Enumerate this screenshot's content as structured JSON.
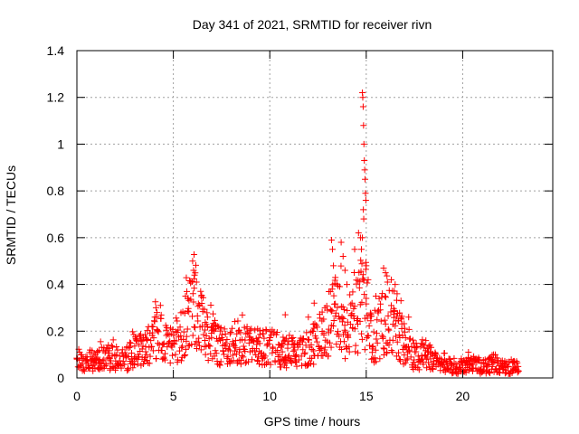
{
  "chart_data": {
    "type": "scatter",
    "title": "Day 341 of 2021, SRMTID for receiver rivn",
    "xlabel": "GPS time / hours",
    "ylabel": "SRMTID / TECUs",
    "xlim": [
      0,
      24.67
    ],
    "ylim": [
      0,
      1.4
    ],
    "xticks": [
      0,
      5,
      10,
      15,
      20
    ],
    "yticks": [
      0,
      0.2,
      0.4,
      0.6,
      0.8,
      1,
      1.2,
      1.4
    ],
    "x_tick_labels": [
      "0",
      "5",
      "10",
      "15",
      "20"
    ],
    "y_tick_labels": [
      "0",
      "0.2",
      "0.4",
      "0.6",
      "0.8",
      "1",
      "1.2",
      "1.4"
    ],
    "grid": true,
    "marker": "+",
    "series": [
      {
        "name": "SRMTID",
        "color": "#ff0000",
        "envelope": [
          [
            0.0,
            0.08
          ],
          [
            0.5,
            0.06
          ],
          [
            1.0,
            0.08
          ],
          [
            1.5,
            0.1
          ],
          [
            2.0,
            0.09
          ],
          [
            2.5,
            0.08
          ],
          [
            3.0,
            0.12
          ],
          [
            3.5,
            0.13
          ],
          [
            4.0,
            0.2
          ],
          [
            4.2,
            0.26
          ],
          [
            4.5,
            0.16
          ],
          [
            5.0,
            0.15
          ],
          [
            5.5,
            0.2
          ],
          [
            5.8,
            0.28
          ],
          [
            6.0,
            0.3
          ],
          [
            6.2,
            0.33
          ],
          [
            6.4,
            0.26
          ],
          [
            7.0,
            0.17
          ],
          [
            7.5,
            0.15
          ],
          [
            8.0,
            0.14
          ],
          [
            8.5,
            0.16
          ],
          [
            9.0,
            0.14
          ],
          [
            9.5,
            0.15
          ],
          [
            10.0,
            0.14
          ],
          [
            10.5,
            0.13
          ],
          [
            11.0,
            0.12
          ],
          [
            11.5,
            0.11
          ],
          [
            12.0,
            0.12
          ],
          [
            12.5,
            0.18
          ],
          [
            13.0,
            0.2
          ],
          [
            13.3,
            0.3
          ],
          [
            13.6,
            0.28
          ],
          [
            14.0,
            0.22
          ],
          [
            14.3,
            0.26
          ],
          [
            14.6,
            0.3
          ],
          [
            14.8,
            0.38
          ],
          [
            15.0,
            0.32
          ],
          [
            15.3,
            0.16
          ],
          [
            15.6,
            0.2
          ],
          [
            16.0,
            0.28
          ],
          [
            16.5,
            0.26
          ],
          [
            17.0,
            0.14
          ],
          [
            17.5,
            0.1
          ],
          [
            18.0,
            0.1
          ],
          [
            18.5,
            0.08
          ],
          [
            19.0,
            0.06
          ],
          [
            19.5,
            0.05
          ],
          [
            20.0,
            0.05
          ],
          [
            20.5,
            0.06
          ],
          [
            21.0,
            0.05
          ],
          [
            21.5,
            0.06
          ],
          [
            22.0,
            0.05
          ],
          [
            22.5,
            0.05
          ],
          [
            22.9,
            0.05
          ]
        ],
        "spikes": [
          [
            4.1,
            0.3
          ],
          [
            4.15,
            0.28
          ],
          [
            6.0,
            0.5
          ],
          [
            6.05,
            0.46
          ],
          [
            6.1,
            0.44
          ],
          [
            6.2,
            0.41
          ],
          [
            5.7,
            0.37
          ],
          [
            5.75,
            0.34
          ],
          [
            10.8,
            0.27
          ],
          [
            12.0,
            0.26
          ],
          [
            12.3,
            0.32
          ],
          [
            13.2,
            0.59
          ],
          [
            13.25,
            0.55
          ],
          [
            13.3,
            0.48
          ],
          [
            13.4,
            0.43
          ],
          [
            13.7,
            0.58
          ],
          [
            13.8,
            0.52
          ],
          [
            13.9,
            0.46
          ],
          [
            14.0,
            0.4
          ],
          [
            14.4,
            0.55
          ],
          [
            14.6,
            0.62
          ],
          [
            14.7,
            0.6
          ],
          [
            14.8,
            1.22
          ],
          [
            14.82,
            1.2
          ],
          [
            14.84,
            1.16
          ],
          [
            14.86,
            1.08
          ],
          [
            14.88,
            1.0
          ],
          [
            14.9,
            0.93
          ],
          [
            14.92,
            0.89
          ],
          [
            14.94,
            0.85
          ],
          [
            14.96,
            0.79
          ],
          [
            14.98,
            0.76
          ],
          [
            14.85,
            0.72
          ],
          [
            14.87,
            0.68
          ],
          [
            14.8,
            0.6
          ],
          [
            14.75,
            0.55
          ],
          [
            15.0,
            0.48
          ],
          [
            15.1,
            0.42
          ],
          [
            15.5,
            0.35
          ],
          [
            15.9,
            0.47
          ],
          [
            16.0,
            0.45
          ],
          [
            16.1,
            0.41
          ],
          [
            16.3,
            0.42
          ],
          [
            16.5,
            0.4
          ],
          [
            16.6,
            0.36
          ],
          [
            16.8,
            0.33
          ],
          [
            17.2,
            0.26
          ],
          [
            18.3,
            0.14
          ],
          [
            20.3,
            0.11
          ],
          [
            21.6,
            0.1
          ]
        ]
      }
    ]
  }
}
